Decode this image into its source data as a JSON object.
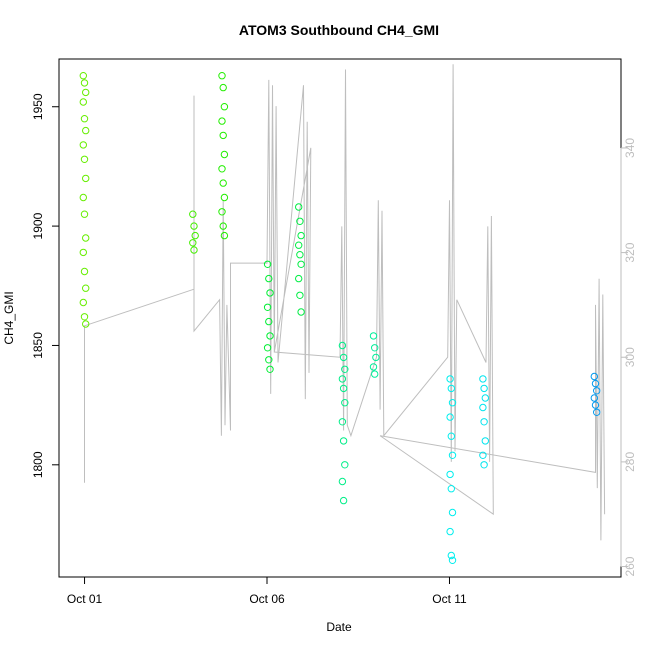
{
  "chart_data": {
    "type": "scatter",
    "title": "ATOM3 Southbound CH4_GMI",
    "xlabel": "Date",
    "ylabel": "CH4_GMI",
    "x_ticks": [
      {
        "day": 1,
        "label": "Oct 01"
      },
      {
        "day": 6,
        "label": "Oct 06"
      },
      {
        "day": 11,
        "label": "Oct 11"
      }
    ],
    "xlim_days": [
      0.3,
      15.7
    ],
    "ylim": [
      1753,
      1970
    ],
    "y_ticks": [
      1800,
      1850,
      1900,
      1950
    ],
    "y2lim": [
      258,
      357
    ],
    "y2_ticks": [
      260,
      280,
      300,
      320,
      340
    ],
    "y2_color": "#bebebe",
    "grid": false,
    "legend": "none",
    "series": [
      {
        "type": "line",
        "color": "#bebebe",
        "axis": "right",
        "points": [
          [
            1.0,
            276
          ],
          [
            1.0,
            306
          ],
          [
            4.0,
            313
          ],
          [
            4.0,
            350
          ],
          [
            4.0,
            305
          ],
          [
            4.7,
            311
          ],
          [
            4.75,
            285
          ],
          [
            4.8,
            330
          ],
          [
            4.85,
            287
          ],
          [
            4.9,
            310
          ],
          [
            5.0,
            286
          ],
          [
            5.0,
            318
          ],
          [
            6.0,
            318
          ],
          [
            6.05,
            353
          ],
          [
            6.1,
            293
          ],
          [
            6.15,
            352
          ],
          [
            6.2,
            301
          ],
          [
            6.25,
            348
          ],
          [
            6.3,
            299
          ],
          [
            7.0,
            352
          ],
          [
            7.05,
            292
          ],
          [
            7.1,
            345
          ],
          [
            7.15,
            297
          ],
          [
            7.2,
            340
          ],
          [
            6.2,
            301
          ],
          [
            8.0,
            300
          ],
          [
            8.05,
            325
          ],
          [
            8.1,
            286
          ],
          [
            8.15,
            355
          ],
          [
            8.2,
            287
          ],
          [
            8.3,
            285
          ],
          [
            9.0,
            300
          ],
          [
            9.05,
            330
          ],
          [
            9.1,
            290
          ],
          [
            9.15,
            328
          ],
          [
            9.2,
            285
          ],
          [
            10.95,
            300
          ],
          [
            11.0,
            330
          ],
          [
            11.05,
            280
          ],
          [
            11.1,
            356
          ],
          [
            11.15,
            282
          ],
          [
            11.2,
            311
          ],
          [
            12.0,
            299
          ],
          [
            12.05,
            325
          ],
          [
            12.1,
            280
          ],
          [
            12.15,
            327
          ],
          [
            12.2,
            270
          ],
          [
            9.1,
            285
          ],
          [
            15.0,
            278
          ],
          [
            15.0,
            310
          ],
          [
            15.05,
            275
          ],
          [
            15.1,
            315
          ],
          [
            15.15,
            265
          ],
          [
            15.2,
            312
          ],
          [
            15.25,
            270
          ]
        ]
      },
      {
        "type": "scatter",
        "name": "",
        "axis": "left",
        "clusters": [
          {
            "day": 1.0,
            "color": "#66ee00",
            "values": [
              1963,
              1960,
              1956,
              1952,
              1945,
              1940,
              1934,
              1928,
              1920,
              1912,
              1905,
              1895,
              1889,
              1881,
              1874,
              1868,
              1862,
              1859
            ]
          },
          {
            "day": 4.0,
            "color": "#44ee00",
            "values": [
              1905,
              1900,
              1896,
              1893,
              1890
            ]
          },
          {
            "day": 4.8,
            "color": "#22ee00",
            "values": [
              1963,
              1958,
              1950,
              1944,
              1938,
              1930,
              1924,
              1918,
              1912,
              1906,
              1900,
              1896
            ]
          },
          {
            "day": 6.05,
            "color": "#00ee33",
            "values": [
              1884,
              1878,
              1872,
              1866,
              1860,
              1854,
              1849,
              1844,
              1840
            ]
          },
          {
            "day": 6.9,
            "color": "#00ee44",
            "values": [
              1908,
              1902,
              1896,
              1892,
              1888,
              1884,
              1878,
              1871,
              1864
            ]
          },
          {
            "day": 8.1,
            "color": "#00ee88",
            "values": [
              1850,
              1845,
              1840,
              1836,
              1832,
              1826,
              1818,
              1810,
              1800,
              1793,
              1785
            ]
          },
          {
            "day": 8.95,
            "color": "#00ee99",
            "values": [
              1854,
              1849,
              1845,
              1841,
              1838
            ]
          },
          {
            "day": 11.05,
            "color": "#00eeee",
            "values": [
              1836,
              1832,
              1826,
              1820,
              1812,
              1804,
              1796,
              1790,
              1780,
              1772,
              1762,
              1760
            ]
          },
          {
            "day": 11.95,
            "color": "#00e4ee",
            "values": [
              1836,
              1832,
              1828,
              1824,
              1818,
              1810,
              1804,
              1800
            ]
          },
          {
            "day": 15.0,
            "color": "#0099ee",
            "values": [
              1837,
              1834,
              1831,
              1828,
              1825,
              1822
            ]
          }
        ]
      }
    ]
  }
}
